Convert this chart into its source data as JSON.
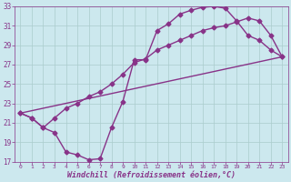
{
  "xlabel": "Windchill (Refroidissement éolien,°C)",
  "bg_color": "#cce8ee",
  "line_color": "#883388",
  "grid_color": "#aacccc",
  "xlim": [
    -0.5,
    23.5
  ],
  "ylim": [
    17,
    33
  ],
  "xticks": [
    0,
    1,
    2,
    3,
    4,
    5,
    6,
    7,
    8,
    9,
    10,
    11,
    12,
    13,
    14,
    15,
    16,
    17,
    18,
    19,
    20,
    21,
    22,
    23
  ],
  "yticks": [
    17,
    19,
    21,
    23,
    25,
    27,
    29,
    31,
    33
  ],
  "line1_x": [
    0,
    1,
    2,
    3,
    4,
    5,
    6,
    7,
    8,
    9,
    10,
    11,
    12,
    13,
    14,
    15,
    16,
    17,
    18,
    19,
    20,
    21,
    22,
    23
  ],
  "line1_y": [
    22.0,
    21.5,
    20.5,
    20.0,
    18.0,
    17.7,
    17.2,
    17.3,
    20.5,
    23.2,
    27.5,
    27.5,
    30.5,
    31.2,
    32.2,
    32.6,
    32.9,
    33.0,
    32.8,
    31.5,
    30.0,
    29.5,
    28.5,
    27.8
  ],
  "line1_has_markers": [
    1,
    1,
    1,
    1,
    1,
    1,
    1,
    1,
    0,
    1,
    0,
    1,
    0,
    1,
    1,
    1,
    1,
    1,
    1,
    1,
    1,
    1,
    1,
    1
  ],
  "line2_x": [
    0,
    23
  ],
  "line2_y": [
    22.0,
    27.8
  ],
  "line3_x": [
    0,
    1,
    2,
    3,
    4,
    5,
    6,
    7,
    8,
    9,
    10,
    11,
    12,
    13,
    14,
    15,
    16,
    17,
    18,
    19,
    20,
    21,
    22,
    23
  ],
  "line3_y": [
    22.0,
    21.5,
    20.5,
    21.5,
    22.5,
    23.0,
    23.7,
    24.2,
    25.0,
    26.0,
    27.2,
    27.6,
    28.5,
    29.0,
    29.5,
    30.0,
    30.5,
    30.8,
    31.0,
    31.4,
    31.8,
    31.5,
    30.0,
    27.8
  ],
  "marker": "D",
  "markersize": 2.5,
  "linewidth": 1.0,
  "xlabel_fontsize": 6,
  "xtick_fontsize": 4.5,
  "ytick_fontsize": 5.5
}
